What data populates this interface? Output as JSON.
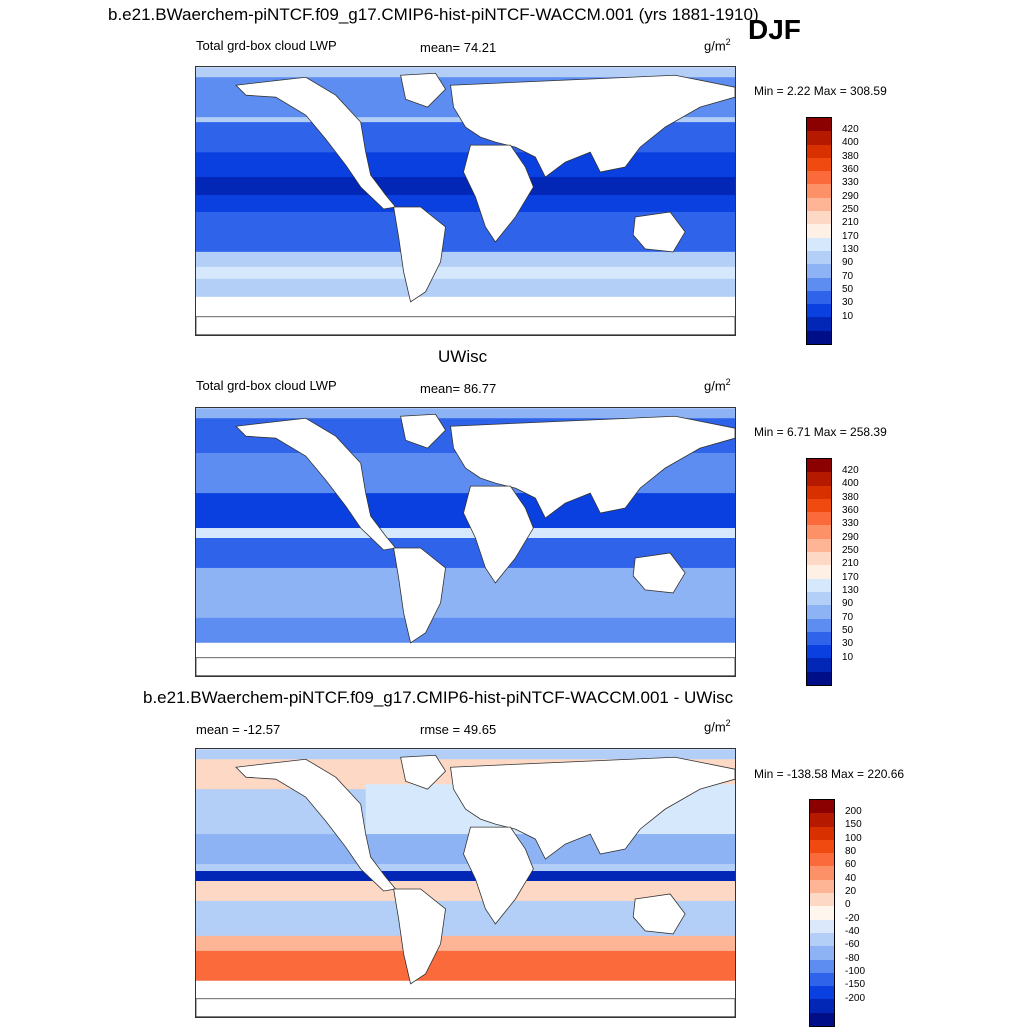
{
  "figure": {
    "title": "b.e21.BWaerchem-piNTCF.f09_g17.CMIP6-hist-piNTCF-WACCM.001 (yrs 1881-1910)",
    "season": "DJF"
  },
  "panels": [
    {
      "id": "top",
      "subtitle": "",
      "left_label": "Total grd-box cloud LWP",
      "center_label": "mean=  74.21",
      "units_base": "g/m",
      "units_exp": "2",
      "minmax": "Min =   2.22 Max = 308.59",
      "colorbar_labels": [
        "420",
        "400",
        "380",
        "360",
        "330",
        "290",
        "250",
        "210",
        "170",
        "130",
        "90",
        "70",
        "50",
        "30",
        "10"
      ]
    },
    {
      "id": "middle",
      "subtitle": "UWisc",
      "left_label": "Total grd-box cloud LWP",
      "center_label": "mean=  86.77",
      "units_base": "g/m",
      "units_exp": "2",
      "minmax": "Min =   6.71 Max = 258.39",
      "colorbar_labels": [
        "420",
        "400",
        "380",
        "360",
        "330",
        "290",
        "250",
        "210",
        "170",
        "130",
        "90",
        "70",
        "50",
        "30",
        "10"
      ]
    },
    {
      "id": "bottom",
      "subtitle": "b.e21.BWaerchem-piNTCF.f09_g17.CMIP6-hist-piNTCF-WACCM.001 - UWisc",
      "left_label": "mean = -12.57",
      "center_label": "rmse =  49.65",
      "units_base": "g/m",
      "units_exp": "2",
      "minmax": "Min = -138.58 Max = 220.66",
      "colorbar_labels": [
        "200",
        "150",
        "100",
        "80",
        "60",
        "40",
        "20",
        "0",
        "-20",
        "-40",
        "-60",
        "-80",
        "-100",
        "-150",
        "-200"
      ]
    }
  ],
  "colors": {
    "abs_scale": [
      "#8b0000",
      "#b51a00",
      "#d93000",
      "#f04a10",
      "#fb6a3a",
      "#fc9066",
      "#fdb595",
      "#fdd8c4",
      "#fff0e6",
      "#d6e8fb",
      "#b3cff8",
      "#8db3f5",
      "#5d8df0",
      "#2e63ea",
      "#0a3fe0",
      "#0226b5",
      "#000e88"
    ],
    "diff_scale": [
      "#8b0000",
      "#b51a00",
      "#d93000",
      "#f04a10",
      "#fb6a3a",
      "#fc9066",
      "#fdb595",
      "#fdd8c4",
      "#fff6ee",
      "#dbe8fb",
      "#b3cff8",
      "#8db3f5",
      "#5d8df0",
      "#2e63ea",
      "#0a3fe0",
      "#0226b5",
      "#000e88"
    ]
  }
}
